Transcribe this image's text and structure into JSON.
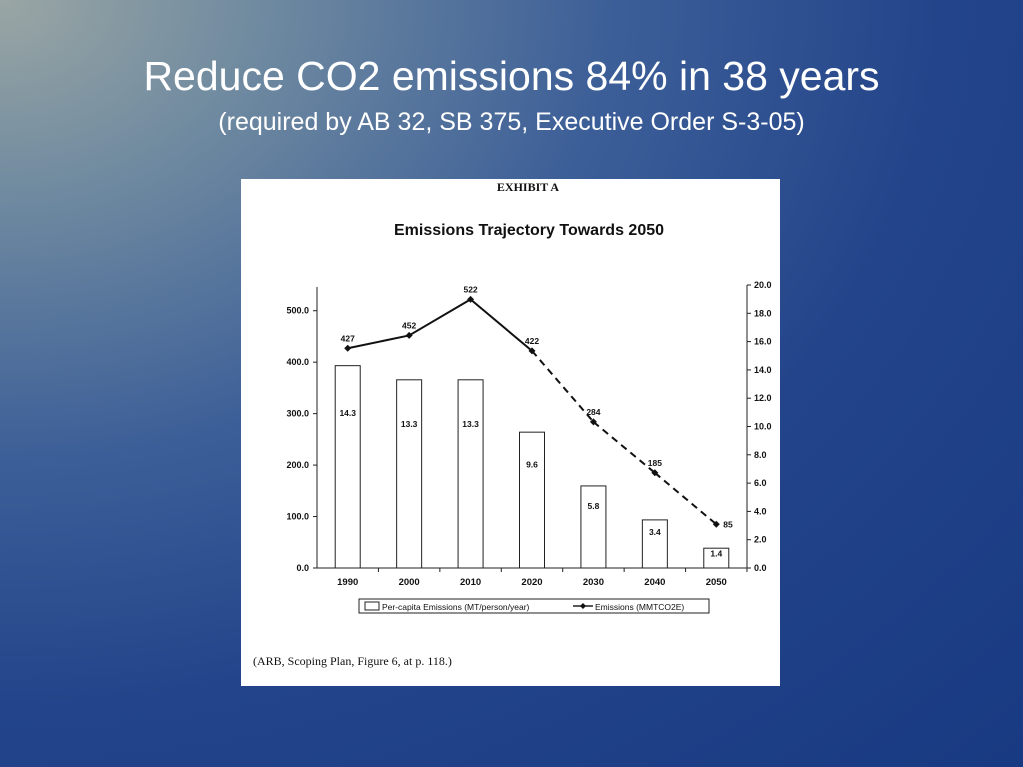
{
  "slide": {
    "title": "Reduce CO2 emissions 84% in 38 years",
    "subtitle": "(required by AB 32, SB 375, Executive Order S-3-05)"
  },
  "figure": {
    "exhibit_label": "EXHIBIT A",
    "caption": "(ARB, Scoping Plan, Figure 6, at p. 118.)"
  },
  "chart_data": {
    "type": "bar",
    "title": "Emissions Trajectory Towards 2050",
    "categories": [
      "1990",
      "2000",
      "2010",
      "2020",
      "2030",
      "2040",
      "2050"
    ],
    "series": [
      {
        "name": "Per-capita Emissions (MT/person/year)",
        "type": "bar",
        "axis": "right",
        "values": [
          14.3,
          13.3,
          13.3,
          9.6,
          5.8,
          3.4,
          1.4
        ],
        "labels": [
          "14.3",
          "13.3",
          "13.3",
          "9.6",
          "5.8",
          "3.4",
          "1.4"
        ]
      },
      {
        "name": "Emissions (MMTCO2E)",
        "type": "line",
        "axis": "left",
        "values": [
          427,
          452,
          522,
          422,
          284,
          185,
          85
        ],
        "labels": [
          "427",
          "452",
          "522",
          "422",
          "284",
          "185",
          "85"
        ],
        "line_style": [
          "solid",
          "solid",
          "solid",
          "dashed",
          "dashed",
          "dashed"
        ]
      }
    ],
    "y_left": {
      "ylim": [
        0,
        550
      ],
      "ticks": [
        "0.0",
        "100.0",
        "200.0",
        "300.0",
        "400.0",
        "500.0"
      ],
      "tick_values": [
        0,
        100,
        200,
        300,
        400,
        500
      ]
    },
    "y_right": {
      "ylim": [
        0,
        20
      ],
      "ticks": [
        "0.0",
        "2.0",
        "4.0",
        "6.0",
        "8.0",
        "10.0",
        "12.0",
        "14.0",
        "16.0",
        "18.0",
        "20.0"
      ],
      "tick_values": [
        0,
        2,
        4,
        6,
        8,
        10,
        12,
        14,
        16,
        18,
        20
      ]
    },
    "grid": false,
    "legend_position": "bottom-center"
  }
}
